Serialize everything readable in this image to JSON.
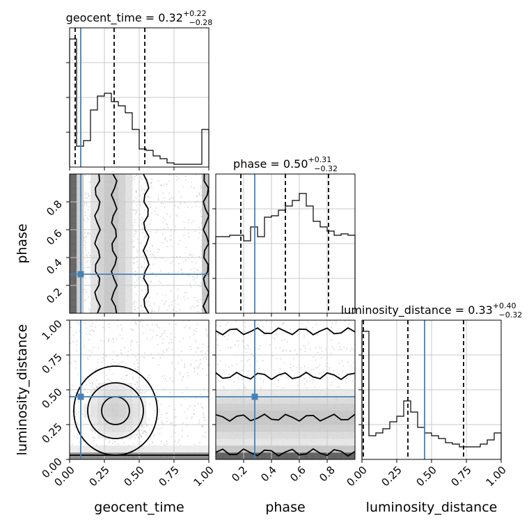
{
  "parameters": [
    {
      "name": "geocent_time",
      "median": "0.32",
      "plus": "+0.22",
      "minus": "−0.28",
      "truth": 0.08
    },
    {
      "name": "phase",
      "median": "0.50",
      "plus": "+0.31",
      "minus": "−0.32",
      "truth": 0.28
    },
    {
      "name": "luminosity_distance",
      "median": "0.33",
      "plus": "+0.40",
      "minus": "−0.32",
      "truth": 0.45
    }
  ],
  "title_prefix": " = ",
  "colors": {
    "truth": "#4682b4",
    "hist": "#000000",
    "grid": "#c8c8c8",
    "scatter": "#b0b0b0",
    "frame": "#000000"
  },
  "chart_data": [
    {
      "type": "histogram",
      "panel": "geocent_time",
      "title": "geocent_time = 0.32 +0.22 −0.28",
      "xlim": [
        0,
        1
      ],
      "ylim": [
        0,
        1
      ],
      "edges": [
        0,
        0.05,
        0.1,
        0.15,
        0.2,
        0.25,
        0.3,
        0.35,
        0.4,
        0.45,
        0.5,
        0.55,
        0.6,
        0.65,
        0.7,
        0.75,
        0.8,
        0.85,
        0.9,
        0.95,
        1.0
      ],
      "counts": [
        0.1,
        0.15,
        0.19,
        0.41,
        0.51,
        0.53,
        0.47,
        0.44,
        0.39,
        0.27,
        0.13,
        0.12,
        0.08,
        0.06,
        0.03,
        0.02,
        0.02,
        0.02,
        0.02,
        0.27
      ],
      "spike": {
        "x0": 0.0,
        "x1": 0.05,
        "value": 0.92
      },
      "quantiles": [
        0.04,
        0.32,
        0.54
      ],
      "truth": 0.08,
      "xticks": [
        0,
        0.25,
        0.5,
        0.75,
        1.0
      ]
    },
    {
      "type": "histogram",
      "panel": "phase",
      "title": "phase = 0.50 +0.31 −0.32",
      "xlim": [
        0,
        1
      ],
      "ylim": [
        0,
        1
      ],
      "edges": [
        0,
        0.05,
        0.1,
        0.15,
        0.2,
        0.25,
        0.3,
        0.35,
        0.4,
        0.45,
        0.5,
        0.55,
        0.6,
        0.65,
        0.7,
        0.75,
        0.8,
        0.85,
        0.9,
        0.95,
        1.0
      ],
      "counts": [
        0.55,
        0.55,
        0.56,
        0.56,
        0.52,
        0.62,
        0.55,
        0.69,
        0.7,
        0.74,
        0.77,
        0.81,
        0.86,
        0.77,
        0.66,
        0.62,
        0.59,
        0.56,
        0.57,
        0.56
      ],
      "quantiles": [
        0.18,
        0.5,
        0.81
      ],
      "truth": 0.28,
      "xticks": [
        0.2,
        0.4,
        0.6,
        0.8
      ]
    },
    {
      "type": "histogram",
      "panel": "luminosity_distance",
      "title": "luminosity_distance = 0.33 +0.40 −0.32",
      "xlim": [
        0,
        1
      ],
      "ylim": [
        0,
        1
      ],
      "edges": [
        0,
        0.05,
        0.1,
        0.15,
        0.2,
        0.25,
        0.3,
        0.35,
        0.4,
        0.45,
        0.5,
        0.55,
        0.6,
        0.65,
        0.7,
        0.75,
        0.8,
        0.85,
        0.9,
        0.95,
        1.0
      ],
      "counts": [
        0.17,
        0.17,
        0.19,
        0.22,
        0.27,
        0.31,
        0.42,
        0.34,
        0.23,
        0.19,
        0.17,
        0.15,
        0.12,
        0.11,
        0.09,
        0.09,
        0.09,
        0.11,
        0.14,
        0.19
      ],
      "spike": {
        "x0": 0.0,
        "x1": 0.05,
        "value": 0.92
      },
      "quantiles": [
        0.01,
        0.33,
        0.73
      ],
      "truth": 0.45,
      "xticks": [
        0,
        0.25,
        0.5,
        0.75,
        1.0
      ]
    },
    {
      "type": "scatter_contour",
      "panel": "phase-vs-geocent_time",
      "xlabel": "geocent_time",
      "ylabel": "phase",
      "xlim": [
        0,
        1
      ],
      "ylim": [
        0,
        1
      ],
      "truth": [
        0.08,
        0.28
      ],
      "yticks": [
        0.2,
        0.4,
        0.6,
        0.8
      ],
      "xbands": [
        0.2,
        0.32,
        0.55,
        0.98
      ]
    },
    {
      "type": "scatter_contour",
      "panel": "luminosity_distance-vs-geocent_time",
      "xlabel": "geocent_time",
      "ylabel": "luminosity_distance",
      "xlim": [
        0,
        1
      ],
      "ylim": [
        0,
        1
      ],
      "truth": [
        0.08,
        0.45
      ],
      "xticks": [
        0,
        0.25,
        0.5,
        0.75,
        1.0
      ],
      "yticks": [
        0,
        0.25,
        0.5,
        0.75,
        1.0
      ],
      "blob": [
        0.33,
        0.35
      ]
    },
    {
      "type": "scatter_contour",
      "panel": "luminosity_distance-vs-phase",
      "xlabel": "phase",
      "ylabel": "luminosity_distance",
      "xlim": [
        0,
        1
      ],
      "ylim": [
        0,
        1
      ],
      "truth": [
        0.28,
        0.45
      ],
      "xticks": [
        0.2,
        0.4,
        0.6,
        0.8
      ],
      "ybands": [
        0.05,
        0.3,
        0.6,
        0.92
      ]
    }
  ],
  "tick_labels": {
    "x_geocent": [
      "0.00",
      "0.25",
      "0.50",
      "0.75",
      "1.00"
    ],
    "x_phase": [
      "0.2",
      "0.4",
      "0.6",
      "0.8"
    ],
    "x_lumdist": [
      "0.00",
      "0.25",
      "0.50",
      "0.75",
      "1.00"
    ],
    "y_phase": [
      "0.2",
      "0.4",
      "0.6",
      "0.8"
    ],
    "y_lumdist": [
      "0.00",
      "0.25",
      "0.50",
      "0.75",
      "1.00"
    ]
  },
  "axis_labels": {
    "x1": "geocent_time",
    "x2": "phase",
    "x3": "luminosity_distance",
    "y2": "phase",
    "y3": "luminosity_distance"
  }
}
